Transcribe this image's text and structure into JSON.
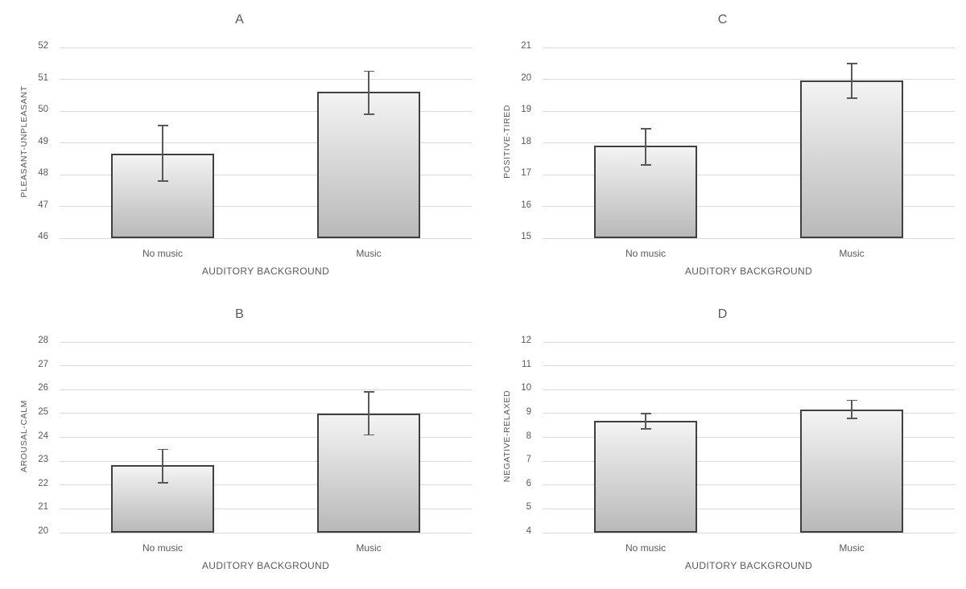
{
  "styles": {
    "text_color": "#595959",
    "gridline_color": "#d9d9d9",
    "bar_fill_top": "#f3f3f3",
    "bar_fill_bottom": "#b9b9b9",
    "bar_border_color": "#3f3f3f",
    "error_bar_color": "#595959",
    "background": "#ffffff"
  },
  "chart_data": [
    {
      "panel": "A",
      "type": "bar",
      "title": "A",
      "ylabel": "PLEASANT-UNPLEASANT",
      "xlabel": "AUDITORY BACKGROUND",
      "categories": [
        "No music",
        "Music"
      ],
      "values": [
        48.65,
        50.6
      ],
      "error_low": [
        47.8,
        49.9
      ],
      "error_high": [
        49.55,
        51.25
      ],
      "ylim": [
        46,
        52
      ],
      "ytick_step": 1,
      "grid": true,
      "legend": false
    },
    {
      "panel": "C",
      "type": "bar",
      "title": "C",
      "ylabel": "POSITIVE-TIRED",
      "xlabel": "AUDITORY BACKGROUND",
      "categories": [
        "No music",
        "Music"
      ],
      "values": [
        17.9,
        19.95
      ],
      "error_low": [
        17.3,
        19.4
      ],
      "error_high": [
        18.45,
        20.5
      ],
      "ylim": [
        15,
        21
      ],
      "ytick_step": 1,
      "grid": true,
      "legend": false
    },
    {
      "panel": "B",
      "type": "bar",
      "title": "B",
      "ylabel": "AROUSAL-CALM",
      "xlabel": "AUDITORY BACKGROUND",
      "categories": [
        "No music",
        "Music"
      ],
      "values": [
        22.85,
        25.0
      ],
      "error_low": [
        22.1,
        24.1
      ],
      "error_high": [
        23.5,
        25.9
      ],
      "ylim": [
        20,
        28
      ],
      "ytick_step": 1,
      "grid": true,
      "legend": false
    },
    {
      "panel": "D",
      "type": "bar",
      "title": "D",
      "ylabel": "NEGATIVE-RELAXED",
      "xlabel": "AUDITORY BACKGROUND",
      "categories": [
        "No music",
        "Music"
      ],
      "values": [
        8.7,
        9.15
      ],
      "error_low": [
        8.35,
        8.8
      ],
      "error_high": [
        9.0,
        9.55
      ],
      "ylim": [
        4,
        12
      ],
      "ytick_step": 1,
      "grid": true,
      "legend": false
    }
  ]
}
